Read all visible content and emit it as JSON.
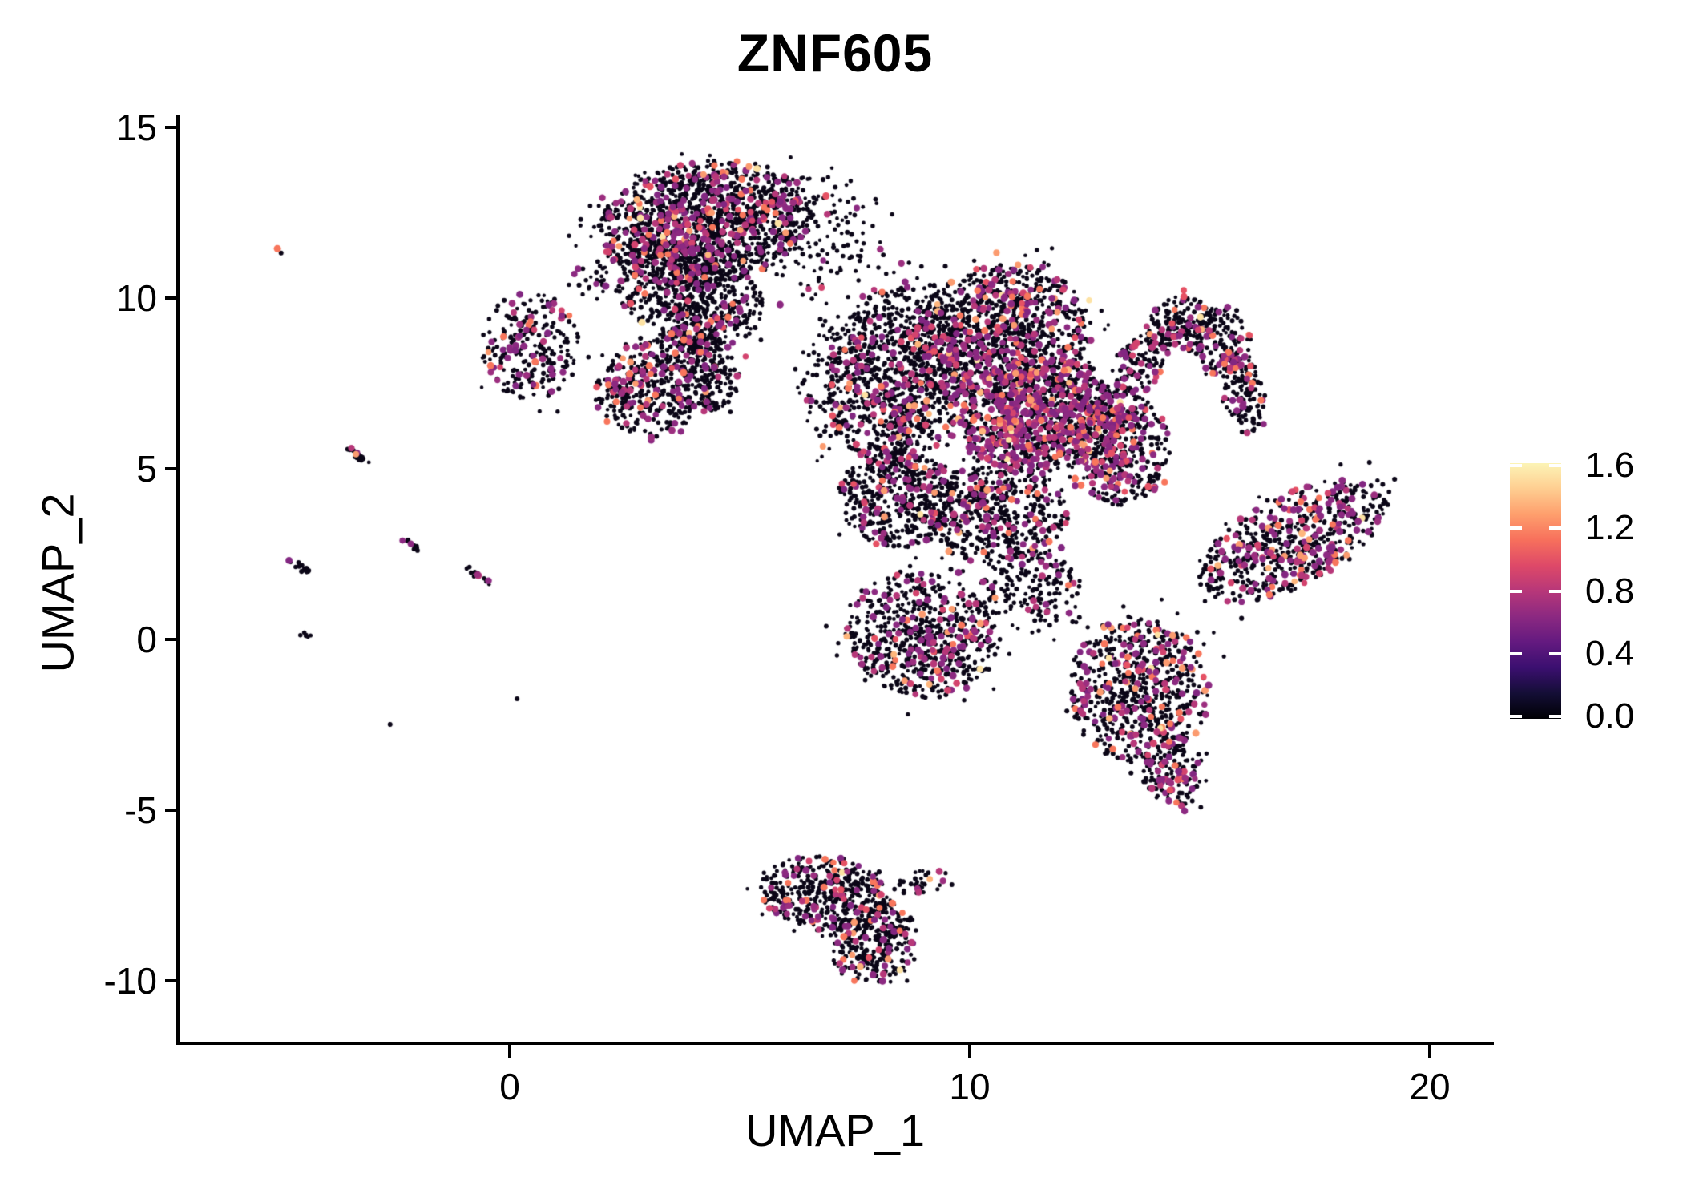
{
  "title": "ZNF605",
  "chart_data": {
    "type": "scatter",
    "subtype": "umap-feature-plot",
    "title": "ZNF605",
    "xlabel": "UMAP_1",
    "ylabel": "UMAP_2",
    "x_tick_labels": [
      "0",
      "10",
      "20"
    ],
    "x_tick_values": [
      0,
      10,
      20
    ],
    "y_tick_labels": [
      "15",
      "10",
      "5",
      "0",
      "-5",
      "-10"
    ],
    "y_tick_values": [
      15,
      10,
      5,
      0,
      -5,
      -10
    ],
    "xlim": [
      -7.2,
      21.4
    ],
    "ylim": [
      -11.8,
      15.4
    ],
    "grid": false,
    "background": "#ffffff",
    "legend": {
      "position": "right",
      "colormap": "magma",
      "tick_labels": [
        "1.6",
        "1.2",
        "0.8",
        "0.4",
        "0.0"
      ],
      "tick_values": [
        1.6,
        1.2,
        0.8,
        0.4,
        0.0
      ],
      "vmin": 0.0,
      "vmax": 1.6,
      "gradient": [
        [
          0.0,
          "#000004"
        ],
        [
          0.1,
          "#140e36"
        ],
        [
          0.2,
          "#3b0f70"
        ],
        [
          0.3,
          "#641a80"
        ],
        [
          0.4,
          "#8c2981"
        ],
        [
          0.5,
          "#b73779"
        ],
        [
          0.6,
          "#de4968"
        ],
        [
          0.7,
          "#f7705c"
        ],
        [
          0.8,
          "#fe9f6d"
        ],
        [
          0.9,
          "#fece91"
        ],
        [
          1.0,
          "#fcf4b6"
        ]
      ]
    },
    "point_style": {
      "nonexpressing_color": "#0b0617",
      "nonexpressing_radius_px": 2.6,
      "expressing_radius_px": 4.2,
      "expressing_palette": [
        [
          "#822681",
          0.1
        ],
        [
          "#8c2981",
          0.3
        ],
        [
          "#9c2e7f",
          0.16
        ],
        [
          "#b73779",
          0.16
        ],
        [
          "#d3436e",
          0.07
        ],
        [
          "#e65164",
          0.04
        ],
        [
          "#f8765c",
          0.1
        ],
        [
          "#fb9b6f",
          0.04
        ],
        [
          "#feb67c",
          0.02
        ],
        [
          "#fde2a3",
          0.01
        ]
      ]
    },
    "clusters": [
      {
        "name": "top-center-main",
        "cx": 4.25,
        "cy": 12.18,
        "rx": 2.35,
        "ry": 1.83,
        "rot": -8,
        "n": 1500,
        "frac": 0.17
      },
      {
        "name": "top-center-lower",
        "cx": 3.9,
        "cy": 10.12,
        "rx": 1.66,
        "ry": 1.46,
        "rot": 18,
        "n": 550,
        "frac": 0.15
      },
      {
        "name": "top-center-arm",
        "cx": 4.11,
        "cy": 8.78,
        "rx": 0.66,
        "ry": 1.13,
        "rot": 8,
        "n": 150,
        "frac": 0.12
      },
      {
        "name": "top-center-arm-tip",
        "cx": 4.55,
        "cy": 7.54,
        "rx": 0.45,
        "ry": 0.85,
        "rot": 15,
        "n": 80,
        "frac": 0.1
      },
      {
        "name": "top-bridge-sparse",
        "cx": 6.9,
        "cy": 11.71,
        "rx": 1.36,
        "ry": 2.0,
        "rot": -20,
        "n": 130,
        "frac": 0.08
      },
      {
        "name": "hook-sponge-bridge",
        "cx": 1.76,
        "cy": 10.49,
        "rx": 0.38,
        "ry": 0.66,
        "rot": 0,
        "n": 25,
        "frac": 0.08
      },
      {
        "name": "left-sponge",
        "cx": 0.45,
        "cy": 8.61,
        "rx": 1.05,
        "ry": 1.6,
        "rot": 0,
        "n": 260,
        "frac": 0.2
      },
      {
        "name": "left-dense-blob",
        "cx": 3.24,
        "cy": 7.44,
        "rx": 1.43,
        "ry": 1.5,
        "rot": -15,
        "n": 450,
        "frac": 0.22
      },
      {
        "name": "main-upper-left",
        "cx": 8.4,
        "cy": 7.72,
        "rx": 1.53,
        "ry": 2.63,
        "rot": 8,
        "n": 950,
        "frac": 0.16
      },
      {
        "name": "main-top",
        "cx": 10.66,
        "cy": 8.9,
        "rx": 1.95,
        "ry": 2.07,
        "rot": -10,
        "n": 1150,
        "frac": 0.2
      },
      {
        "name": "main-core-high-expr",
        "cx": 11.57,
        "cy": 6.55,
        "rx": 1.78,
        "ry": 1.69,
        "rot": -5,
        "n": 1050,
        "frac": 0.34
      },
      {
        "name": "main-right",
        "cx": 13.28,
        "cy": 5.61,
        "rx": 1.08,
        "ry": 1.69,
        "rot": 0,
        "n": 400,
        "frac": 0.26
      },
      {
        "name": "ear-crescent-1",
        "cx": 13.73,
        "cy": 8.15,
        "rx": 0.49,
        "ry": 1.22,
        "rot": 22,
        "n": 130,
        "frac": 0.2
      },
      {
        "name": "ear-crescent-2",
        "cx": 14.55,
        "cy": 9.18,
        "rx": 0.73,
        "ry": 0.85,
        "rot": -22,
        "n": 160,
        "frac": 0.2
      },
      {
        "name": "ear-crescent-3",
        "cx": 15.47,
        "cy": 8.71,
        "rx": 0.63,
        "ry": 1.08,
        "rot": -25,
        "n": 170,
        "frac": 0.2
      },
      {
        "name": "ear-crescent-4",
        "cx": 15.94,
        "cy": 7.21,
        "rx": 0.47,
        "ry": 1.17,
        "rot": -8,
        "n": 130,
        "frac": 0.2
      },
      {
        "name": "main-waist-left",
        "cx": 8.4,
        "cy": 4.15,
        "rx": 1.25,
        "ry": 1.46,
        "rot": 0,
        "n": 430,
        "frac": 0.15
      },
      {
        "name": "main-waist-center",
        "cx": 10.52,
        "cy": 3.69,
        "rx": 1.6,
        "ry": 1.46,
        "rot": 0,
        "n": 520,
        "frac": 0.18
      },
      {
        "name": "bottom-left-foot",
        "cx": 8.95,
        "cy": 0.16,
        "rx": 1.69,
        "ry": 1.83,
        "rot": 15,
        "n": 680,
        "frac": 0.18
      },
      {
        "name": "foot-lobe-bridge",
        "cx": 11.31,
        "cy": 1.46,
        "rx": 1.11,
        "ry": 1.27,
        "rot": 0,
        "n": 180,
        "frac": 0.15
      },
      {
        "name": "bottom-right-lobe",
        "cx": 13.66,
        "cy": -1.48,
        "rx": 1.53,
        "ry": 2.18,
        "rot": -20,
        "n": 720,
        "frac": 0.21
      },
      {
        "name": "bottom-right-tail",
        "cx": 14.39,
        "cy": -3.9,
        "rx": 0.63,
        "ry": 1.08,
        "rot": -30,
        "n": 140,
        "frac": 0.2
      },
      {
        "name": "right-wing",
        "cx": 17.0,
        "cy": 2.89,
        "rx": 2.21,
        "ry": 1.34,
        "rot": -27,
        "n": 640,
        "frac": 0.23
      },
      {
        "name": "main-left-sparse-edge",
        "cx": 6.9,
        "cy": 7.72,
        "rx": 0.73,
        "ry": 1.92,
        "rot": 0,
        "n": 70,
        "frac": 0.06
      },
      {
        "name": "bottom-island-upper",
        "cx": 6.86,
        "cy": -7.44,
        "rx": 1.43,
        "ry": 1.1,
        "rot": 5,
        "n": 430,
        "frac": 0.16
      },
      {
        "name": "bottom-island-lower",
        "cx": 7.91,
        "cy": -8.85,
        "rx": 0.99,
        "ry": 1.22,
        "rot": -25,
        "n": 290,
        "frac": 0.16
      },
      {
        "name": "bottom-island-spur",
        "cx": 8.99,
        "cy": -7.11,
        "rx": 0.56,
        "ry": 0.38,
        "rot": -10,
        "n": 35,
        "frac": 0.08
      },
      {
        "name": "streak-1",
        "cx": -3.31,
        "cy": 5.4,
        "rx": 0.33,
        "ry": 0.1,
        "rot": 38,
        "n": 22,
        "frac": 0.14
      },
      {
        "name": "streak-2",
        "cx": -2.16,
        "cy": 2.82,
        "rx": 0.26,
        "ry": 0.1,
        "rot": 35,
        "n": 14,
        "frac": 0.14
      },
      {
        "name": "streak-3",
        "cx": -4.56,
        "cy": 2.14,
        "rx": 0.3,
        "ry": 0.1,
        "rot": 35,
        "n": 16,
        "frac": 0.18
      },
      {
        "name": "streak-4",
        "cx": -0.68,
        "cy": 1.85,
        "rx": 0.35,
        "ry": 0.1,
        "rot": 35,
        "n": 18,
        "frac": 0.12
      },
      {
        "name": "streak-5",
        "cx": -4.44,
        "cy": 0.16,
        "rx": 0.16,
        "ry": 0.09,
        "rot": 30,
        "n": 7,
        "frac": 0.0
      }
    ],
    "singletons": [
      {
        "name": "outlier-black-rim",
        "x": -4.97,
        "y": 11.32,
        "color": "#0b0617",
        "r": 3.0
      },
      {
        "name": "outlier-orange",
        "x": -5.05,
        "y": 11.45,
        "color": "#f8765c",
        "r": 4.5
      },
      {
        "name": "lone-dot-1",
        "x": 0.16,
        "y": -1.74,
        "color": "#0b0617",
        "r": 3.0
      },
      {
        "name": "lone-dot-2",
        "x": -2.6,
        "y": -2.49,
        "color": "#0b0617",
        "r": 3.0
      }
    ]
  }
}
